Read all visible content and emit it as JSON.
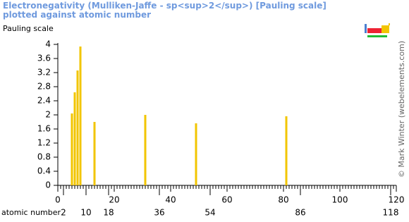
{
  "chart_data": {
    "type": "bar",
    "title": "Electronegativity (Mulliken-Jaffe - sp<sup>2</sup>) [Pauling scale] plotted against atomic number",
    "ylabel": "Pauling scale",
    "xlabel": "atomic number",
    "credit": "© Mark Winter (webelements.com)",
    "x": [
      5,
      6,
      7,
      8,
      13,
      31,
      49,
      81
    ],
    "values": [
      2.04,
      2.64,
      3.26,
      3.94,
      1.8,
      2.0,
      1.76,
      1.96
    ],
    "color": "#f2c500",
    "xlim": [
      0,
      120
    ],
    "xticks": [
      0,
      20,
      40,
      60,
      80,
      100,
      120
    ],
    "xticks2": [
      2,
      10,
      18,
      36,
      54,
      86,
      118
    ],
    "ylim": [
      0,
      4
    ],
    "yticks": [
      0,
      0.4,
      0.8,
      1.2,
      1.6,
      2,
      2.4,
      2.8,
      3.2,
      3.6,
      4
    ]
  }
}
